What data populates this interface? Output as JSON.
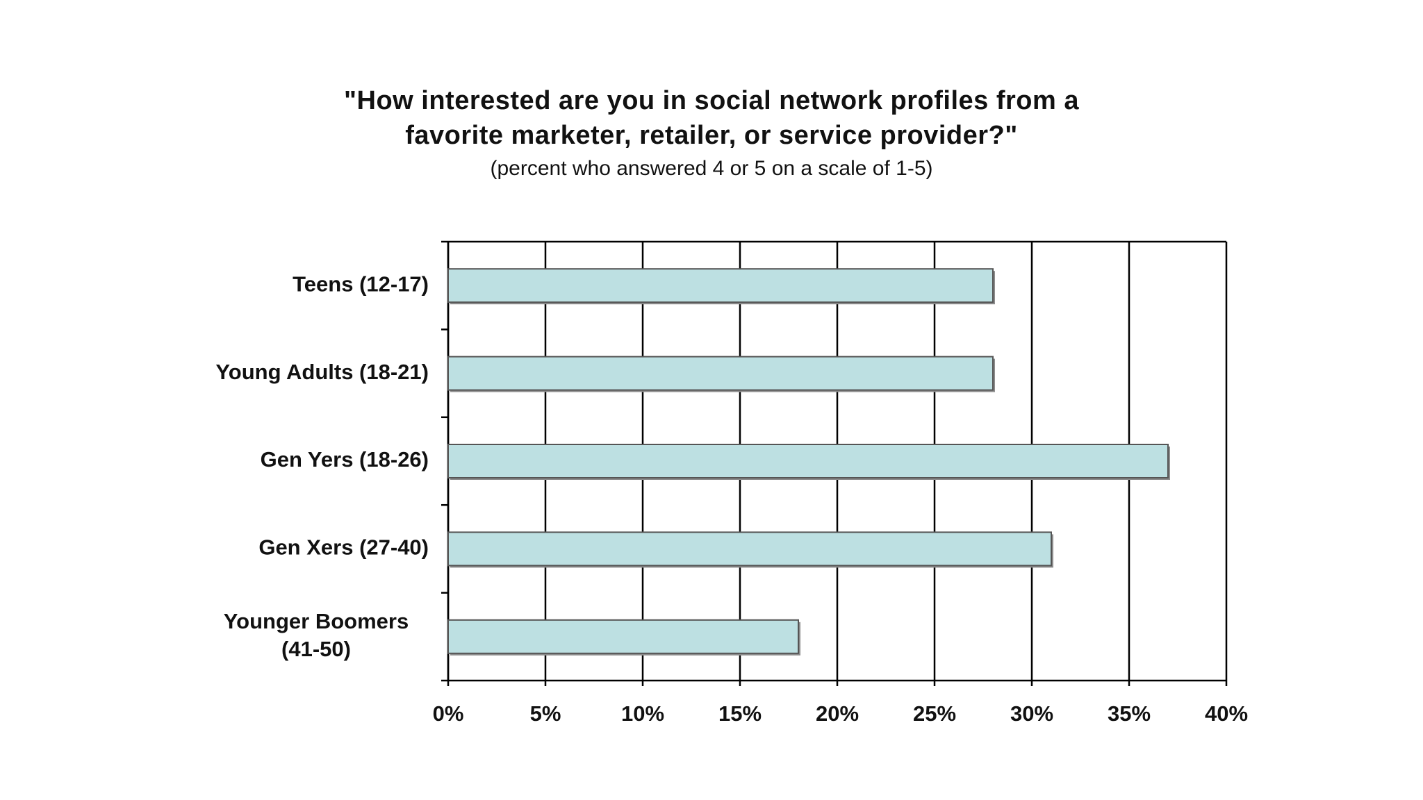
{
  "chart_data": {
    "type": "bar",
    "orientation": "horizontal",
    "title": "\"How interested are you in social network profiles from a favorite marketer, retailer, or service provider?\"",
    "title_lines": [
      "\"How interested are you in social network profiles from a",
      "favorite marketer, retailer, or service provider?\""
    ],
    "subtitle": "(percent who answered 4 or 5 on a scale of 1-5)",
    "categories": [
      "Teens (12-17)",
      "Young Adults (18-21)",
      "Gen Yers (18-26)",
      "Gen Xers (27-40)",
      "Younger Boomers (41-50)"
    ],
    "category_label_lines": [
      [
        "Teens (12-17)"
      ],
      [
        "Young Adults (18-21)"
      ],
      [
        "Gen Yers (18-26)"
      ],
      [
        "Gen Xers (27-40)"
      ],
      [
        "Younger Boomers",
        "(41-50)"
      ]
    ],
    "values": [
      28,
      28,
      37,
      31,
      18
    ],
    "unit": "%",
    "xlim": [
      0,
      40
    ],
    "xticks": [
      0,
      5,
      10,
      15,
      20,
      25,
      30,
      35,
      40
    ],
    "xtick_labels": [
      "0%",
      "5%",
      "10%",
      "15%",
      "20%",
      "25%",
      "30%",
      "35%",
      "40%"
    ],
    "xlabel": "",
    "ylabel": "",
    "grid": "vertical",
    "legend": "none",
    "bar_color": "#bde0e2",
    "bar_edge_color": "#555555"
  }
}
